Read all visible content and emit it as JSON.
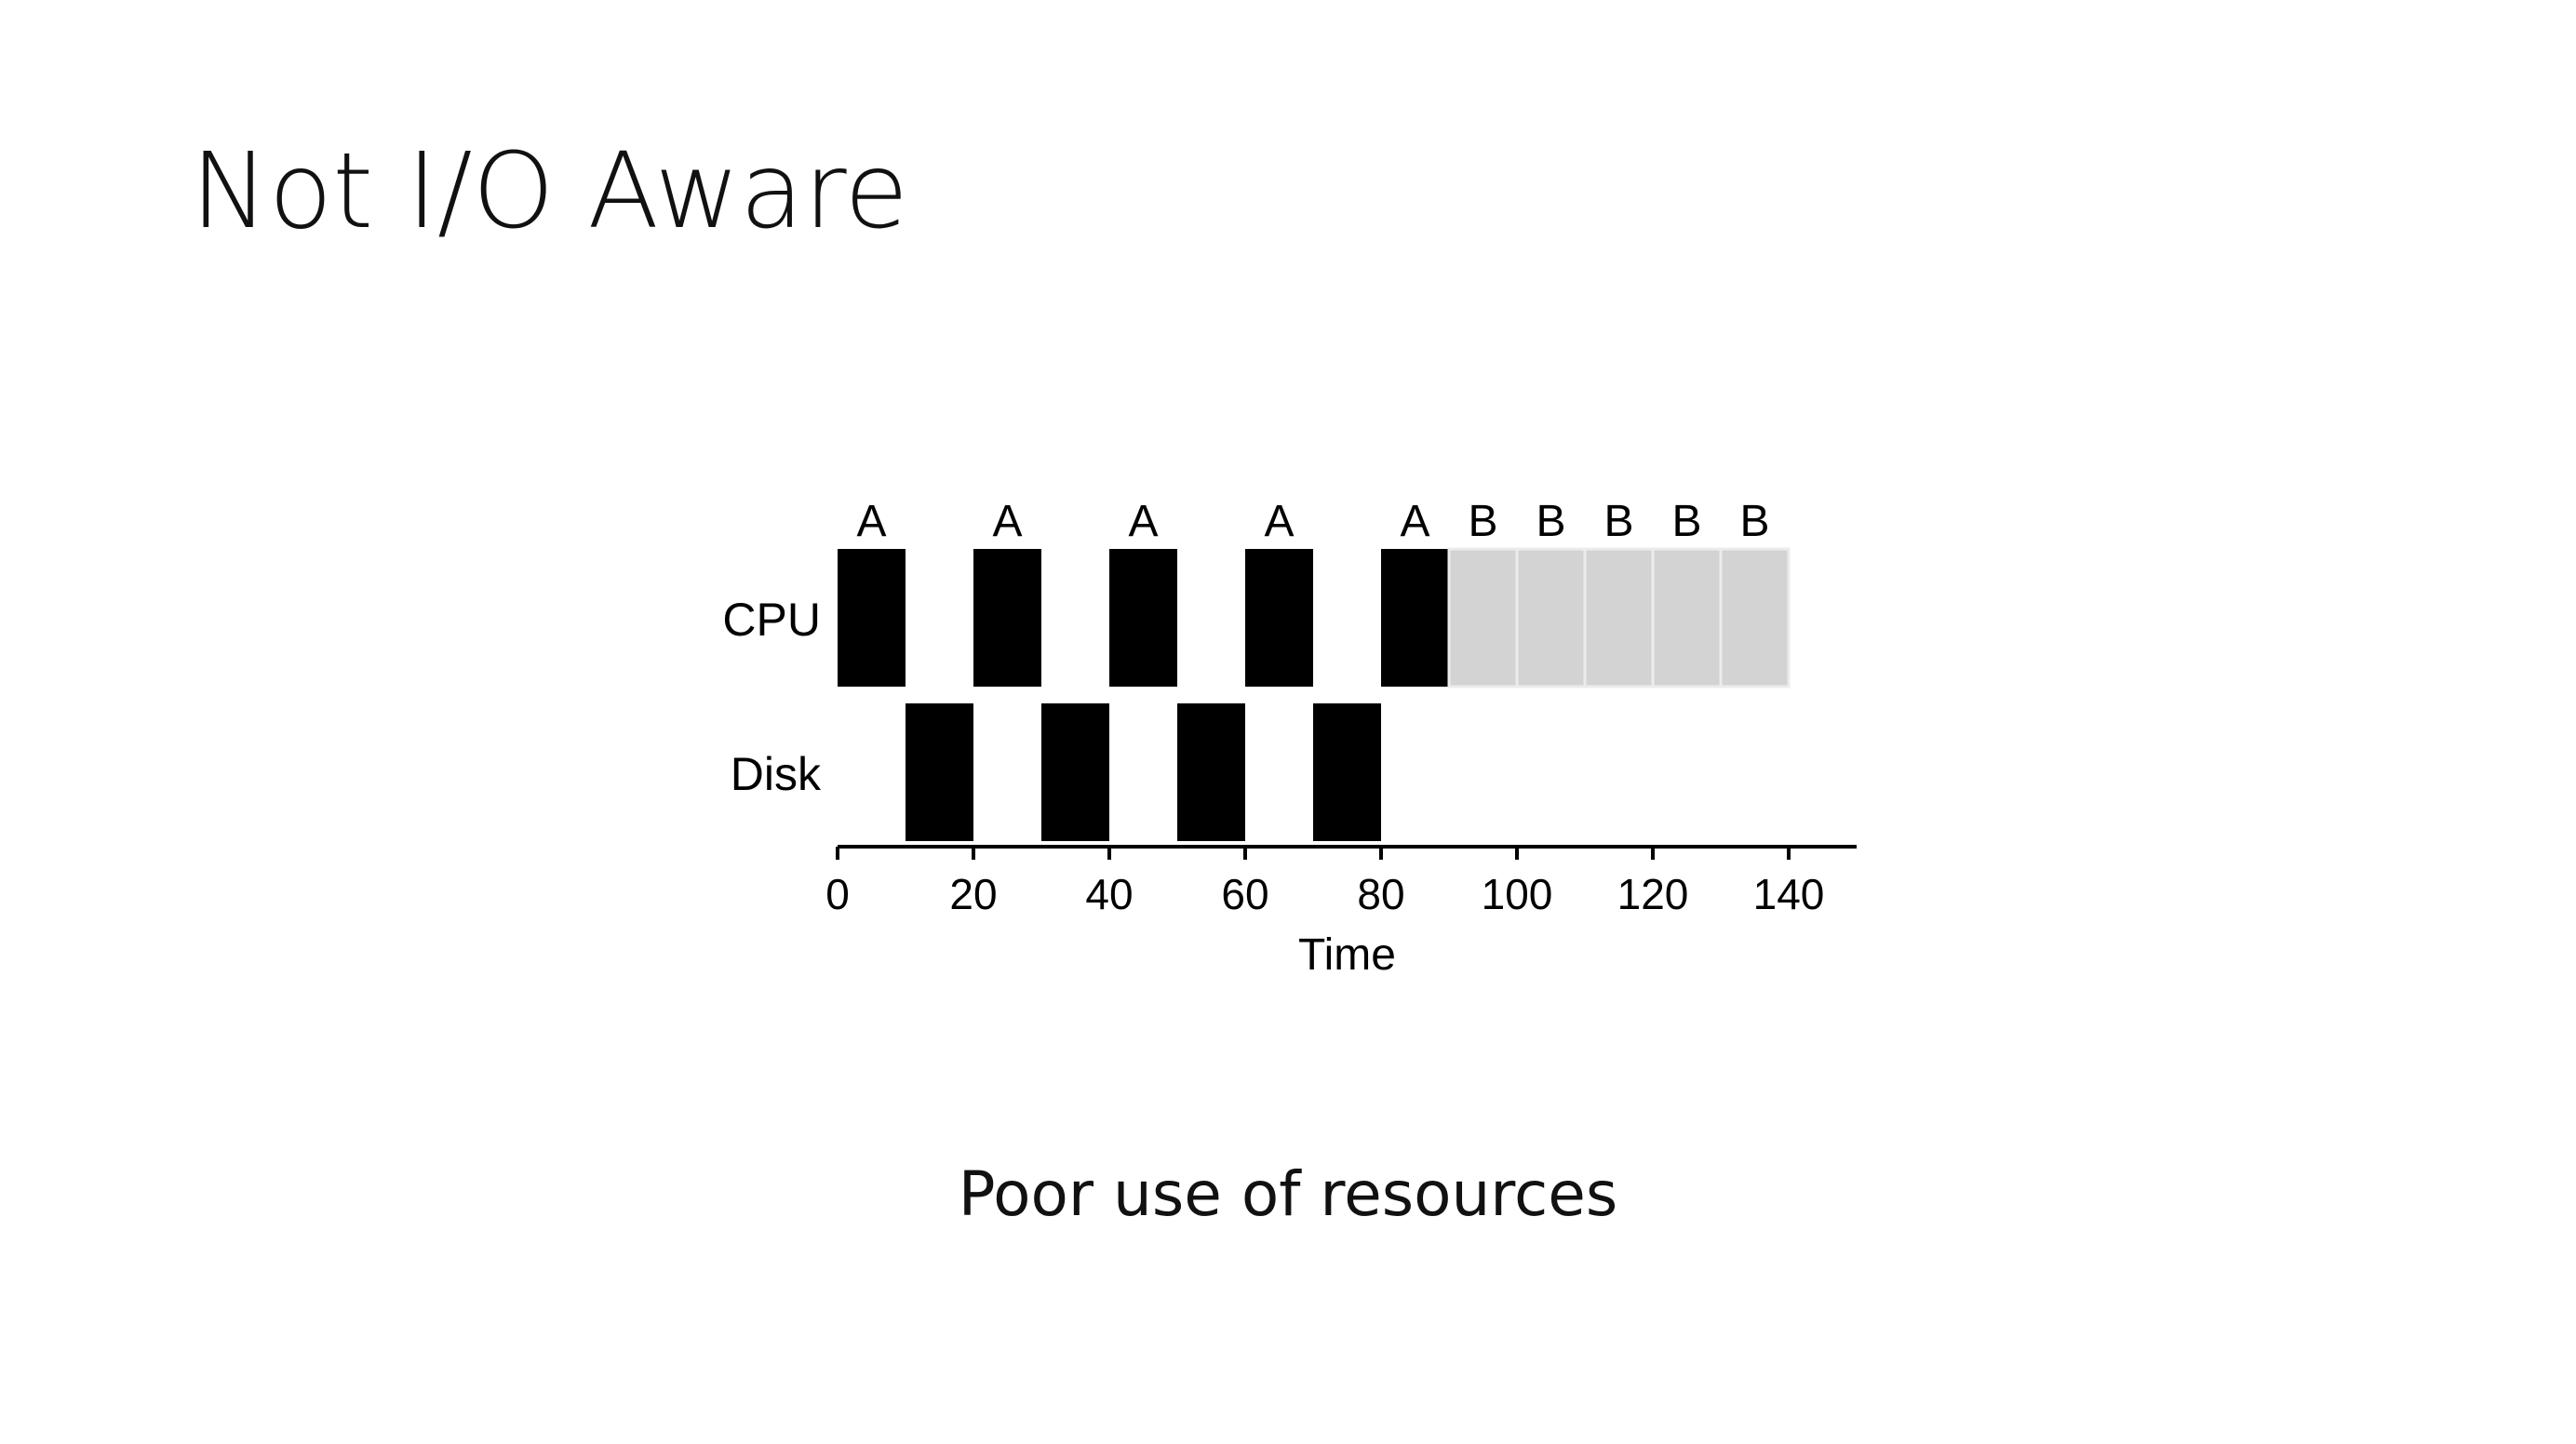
{
  "slide": {
    "title": "Not I/O Aware",
    "caption": "Poor use of resources"
  },
  "chart_data": {
    "type": "gantt",
    "title": "",
    "xlabel": "Time",
    "ylabel": "",
    "xlim": [
      0,
      150
    ],
    "x_ticks": [
      0,
      20,
      40,
      60,
      80,
      100,
      120,
      140
    ],
    "rows": [
      {
        "name": "CPU",
        "segments": [
          {
            "job": "A",
            "start": 0,
            "end": 10,
            "color": "#000000"
          },
          {
            "job": "A",
            "start": 20,
            "end": 30,
            "color": "#000000"
          },
          {
            "job": "A",
            "start": 40,
            "end": 50,
            "color": "#000000"
          },
          {
            "job": "A",
            "start": 60,
            "end": 70,
            "color": "#000000"
          },
          {
            "job": "A",
            "start": 80,
            "end": 90,
            "color": "#000000"
          },
          {
            "job": "B",
            "start": 90,
            "end": 100,
            "color": "#d3d3d3"
          },
          {
            "job": "B",
            "start": 100,
            "end": 110,
            "color": "#d3d3d3"
          },
          {
            "job": "B",
            "start": 110,
            "end": 120,
            "color": "#d3d3d3"
          },
          {
            "job": "B",
            "start": 120,
            "end": 130,
            "color": "#d3d3d3"
          },
          {
            "job": "B",
            "start": 130,
            "end": 140,
            "color": "#d3d3d3"
          }
        ]
      },
      {
        "name": "Disk",
        "segments": [
          {
            "job": "",
            "start": 10,
            "end": 20,
            "color": "#000000"
          },
          {
            "job": "",
            "start": 30,
            "end": 40,
            "color": "#000000"
          },
          {
            "job": "",
            "start": 50,
            "end": 60,
            "color": "#000000"
          },
          {
            "job": "",
            "start": 70,
            "end": 80,
            "color": "#000000"
          }
        ]
      }
    ],
    "grid": false,
    "legend": "none"
  }
}
